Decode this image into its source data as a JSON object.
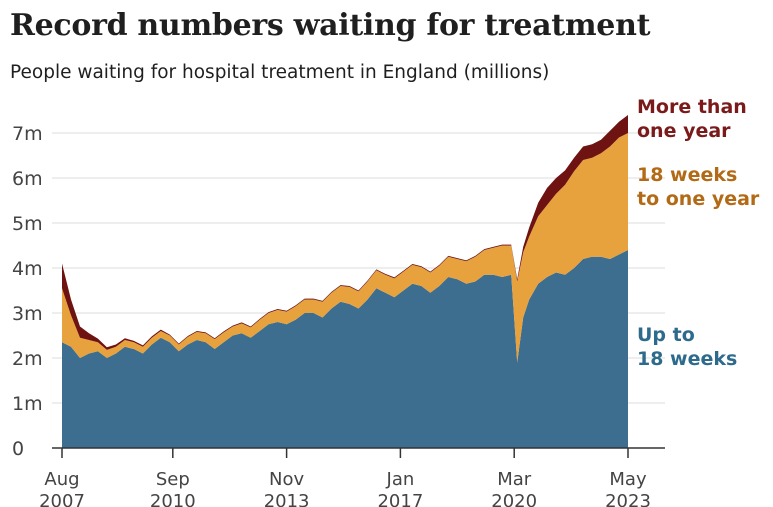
{
  "title": "Record numbers waiting for treatment",
  "subtitle": "People waiting for hospital treatment in England (millions)",
  "chart_data": {
    "type": "area",
    "stacked": true,
    "title": "Record numbers waiting for treatment",
    "subtitle": "People waiting for hospital treatment in England (millions)",
    "xlabel": "",
    "ylabel": "",
    "ylim": [
      0,
      7.5
    ],
    "grid": true,
    "y_ticks": [
      {
        "value": 0,
        "label": "0"
      },
      {
        "value": 1,
        "label": "1m"
      },
      {
        "value": 2,
        "label": "2m"
      },
      {
        "value": 3,
        "label": "3m"
      },
      {
        "value": 4,
        "label": "4m"
      },
      {
        "value": 5,
        "label": "5m"
      },
      {
        "value": 6,
        "label": "6m"
      },
      {
        "value": 7,
        "label": "7m"
      }
    ],
    "x_ticks": [
      {
        "value": "2007-08",
        "label": [
          "Aug",
          "2007"
        ]
      },
      {
        "value": "2010-09",
        "label": [
          "Sep",
          "2010"
        ]
      },
      {
        "value": "2013-11",
        "label": [
          "Nov",
          "2013"
        ]
      },
      {
        "value": "2017-01",
        "label": [
          "Jan",
          "2017"
        ]
      },
      {
        "value": "2020-03",
        "label": [
          "Mar",
          "2020"
        ]
      },
      {
        "value": "2023-05",
        "label": [
          "May",
          "2023"
        ]
      }
    ],
    "x": [
      "2007-08",
      "2007-11",
      "2008-02",
      "2008-05",
      "2008-08",
      "2008-11",
      "2009-02",
      "2009-05",
      "2009-08",
      "2009-11",
      "2010-02",
      "2010-05",
      "2010-08",
      "2010-11",
      "2011-02",
      "2011-05",
      "2011-08",
      "2011-11",
      "2012-02",
      "2012-05",
      "2012-08",
      "2012-11",
      "2013-02",
      "2013-05",
      "2013-08",
      "2013-11",
      "2014-02",
      "2014-05",
      "2014-08",
      "2014-11",
      "2015-02",
      "2015-05",
      "2015-08",
      "2015-11",
      "2016-02",
      "2016-05",
      "2016-08",
      "2016-11",
      "2017-02",
      "2017-05",
      "2017-08",
      "2017-11",
      "2018-02",
      "2018-05",
      "2018-08",
      "2018-11",
      "2019-02",
      "2019-05",
      "2019-08",
      "2019-11",
      "2020-02",
      "2020-04",
      "2020-06",
      "2020-08",
      "2020-11",
      "2021-02",
      "2021-05",
      "2021-08",
      "2021-11",
      "2022-02",
      "2022-05",
      "2022-08",
      "2022-11",
      "2023-02",
      "2023-05"
    ],
    "series": [
      {
        "name": "Up to 18 weeks",
        "color": "#3d6d8f",
        "values": [
          2.35,
          2.25,
          2.0,
          2.1,
          2.15,
          2.0,
          2.1,
          2.25,
          2.2,
          2.1,
          2.3,
          2.45,
          2.35,
          2.15,
          2.3,
          2.4,
          2.35,
          2.2,
          2.35,
          2.5,
          2.55,
          2.45,
          2.6,
          2.75,
          2.8,
          2.75,
          2.85,
          3.0,
          3.0,
          2.9,
          3.1,
          3.25,
          3.2,
          3.1,
          3.3,
          3.55,
          3.45,
          3.35,
          3.5,
          3.65,
          3.6,
          3.45,
          3.6,
          3.8,
          3.75,
          3.65,
          3.7,
          3.85,
          3.85,
          3.8,
          3.85,
          1.9,
          2.9,
          3.3,
          3.65,
          3.8,
          3.9,
          3.85,
          4.0,
          4.2,
          4.25,
          4.25,
          4.2,
          4.3,
          4.4
        ]
      },
      {
        "name": "18 weeks to one year",
        "color": "#e7a23e",
        "values": [
          1.2,
          0.7,
          0.45,
          0.3,
          0.2,
          0.18,
          0.15,
          0.15,
          0.15,
          0.15,
          0.15,
          0.15,
          0.15,
          0.15,
          0.17,
          0.18,
          0.2,
          0.22,
          0.22,
          0.2,
          0.22,
          0.23,
          0.25,
          0.25,
          0.27,
          0.28,
          0.3,
          0.3,
          0.3,
          0.35,
          0.35,
          0.35,
          0.38,
          0.38,
          0.4,
          0.4,
          0.4,
          0.42,
          0.42,
          0.42,
          0.42,
          0.45,
          0.45,
          0.45,
          0.45,
          0.5,
          0.55,
          0.55,
          0.6,
          0.7,
          0.65,
          1.8,
          1.45,
          1.4,
          1.5,
          1.6,
          1.75,
          2.0,
          2.15,
          2.2,
          2.2,
          2.3,
          2.5,
          2.6,
          2.6
        ]
      },
      {
        "name": "More than one year",
        "color": "#6e1212",
        "values": [
          0.55,
          0.35,
          0.25,
          0.15,
          0.08,
          0.06,
          0.05,
          0.04,
          0.03,
          0.03,
          0.03,
          0.03,
          0.02,
          0.02,
          0.02,
          0.02,
          0.02,
          0.02,
          0.02,
          0.02,
          0.02,
          0.02,
          0.02,
          0.02,
          0.02,
          0.02,
          0.02,
          0.02,
          0.02,
          0.02,
          0.02,
          0.02,
          0.02,
          0.02,
          0.02,
          0.02,
          0.02,
          0.02,
          0.02,
          0.02,
          0.02,
          0.02,
          0.02,
          0.02,
          0.02,
          0.02,
          0.02,
          0.02,
          0.02,
          0.02,
          0.02,
          0.05,
          0.12,
          0.2,
          0.3,
          0.38,
          0.35,
          0.32,
          0.3,
          0.3,
          0.3,
          0.3,
          0.35,
          0.35,
          0.4
        ]
      }
    ]
  },
  "series_labels": [
    {
      "lines": [
        "More than",
        "one year"
      ],
      "color": "#7a1a1a"
    },
    {
      "lines": [
        "18 weeks",
        "to one year"
      ],
      "color": "#b36a16"
    },
    {
      "lines": [
        "Up to",
        "18 weeks"
      ],
      "color": "#2e6a8c"
    }
  ]
}
